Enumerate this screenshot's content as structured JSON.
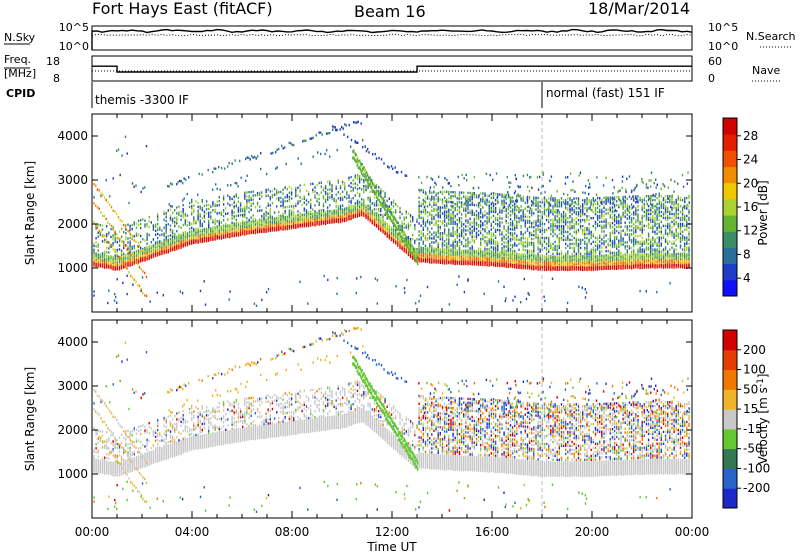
{
  "header": {
    "station": "Fort Hays East (fitACF)",
    "beam": "Beam 16",
    "date": "18/Mar/2014"
  },
  "top_panels": {
    "nsky_label": "N.Sky",
    "nsky_ticks": [
      "10^5",
      "10^0"
    ],
    "nsearch_label": "N.Search",
    "nsearch_ticks": [
      "10^5",
      "10^0"
    ],
    "freq_label": "Freq.",
    "freq_unit": "[MHz]",
    "freq_ticks": [
      "18",
      "8"
    ],
    "nave_label": "Nave",
    "nave_ticks": [
      "60",
      "0"
    ],
    "cpid_label": "CPID",
    "cpid_segments": [
      "themis -3300 IF",
      "normal (fast) 151 IF"
    ],
    "freq_profile": {
      "time_h": [
        0,
        1.0,
        1.0,
        13.0,
        13.0,
        24
      ],
      "freq_mhz": [
        14,
        14,
        11.5,
        11.5,
        14,
        14
      ]
    },
    "cpid_change_h": 18.0
  },
  "chart_data": [
    {
      "type": "heatmap",
      "ylabel": "Slant Range [km]",
      "yticks": [
        "1000",
        "2000",
        "3000",
        "4000"
      ],
      "ylim": [
        0,
        4500
      ],
      "xlim": [
        0,
        24
      ],
      "xticks": [
        "00:00",
        "04:00",
        "08:00",
        "12:00",
        "16:00",
        "20:00",
        "00:00"
      ],
      "colorbar": {
        "label": "Power [dB]",
        "ticks": [
          "4",
          "8",
          "12",
          "16",
          "20",
          "24",
          "28"
        ],
        "colors": [
          "#1010ff",
          "#1e3cc8",
          "#2c6e9a",
          "#3c8c64",
          "#64b432",
          "#aad232",
          "#f0c800",
          "#f08c00",
          "#f05000",
          "#e61e00",
          "#d20000"
        ]
      },
      "main_band": {
        "time_h": [
          0,
          1,
          2,
          4,
          6,
          8,
          10,
          10.8,
          12,
          12.9,
          14,
          16,
          18,
          20,
          22,
          24
        ],
        "range_km": [
          1150,
          1050,
          1250,
          1650,
          1850,
          2000,
          2150,
          2300,
          1700,
          1250,
          1200,
          1150,
          1050,
          1050,
          1100,
          1100
        ]
      }
    },
    {
      "type": "heatmap",
      "ylabel": "Slant Range [km]",
      "yticks": [
        "1000",
        "2000",
        "3000",
        "4000"
      ],
      "ylim": [
        0,
        4500
      ],
      "xlim": [
        0,
        24
      ],
      "xlabel": "Time UT",
      "xticks": [
        "00:00",
        "04:00",
        "08:00",
        "12:00",
        "16:00",
        "20:00",
        "00:00"
      ],
      "colorbar": {
        "label": "Velocity [m s^-1]",
        "ticks": [
          "200",
          "100",
          "50",
          "15",
          "-15",
          "-50",
          "-100",
          "-200"
        ],
        "colors": [
          "#1e28c8",
          "#2864c8",
          "#327850",
          "#64c832",
          "#c8c8c8",
          "#f0b428",
          "#f07800",
          "#e63c00",
          "#d20000"
        ]
      }
    }
  ],
  "colors": {
    "ground_scatter": "#c8c8c8",
    "dashed_marker": "#bbbbbb"
  }
}
